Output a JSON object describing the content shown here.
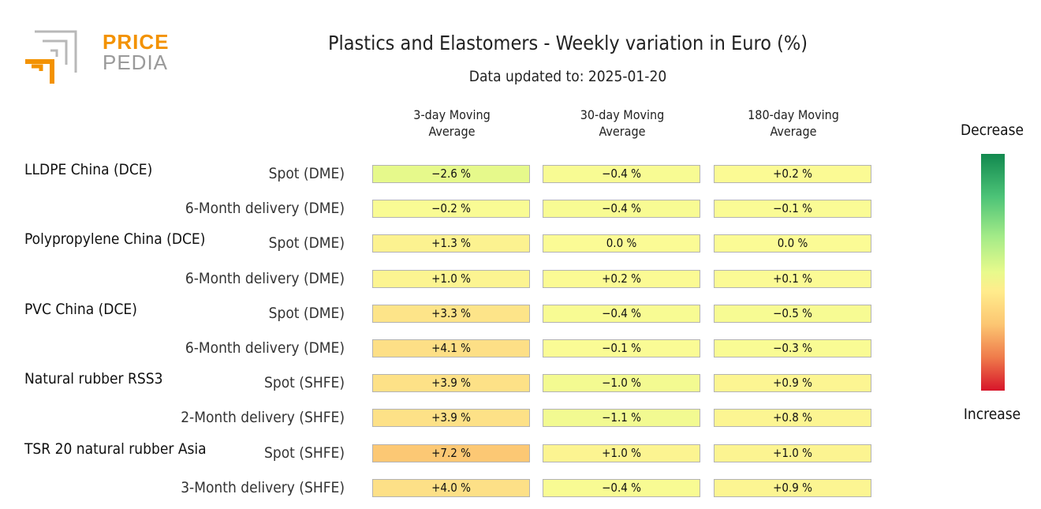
{
  "logo": {
    "line1": "PRICE",
    "line2": "PEDIA"
  },
  "chart_data": {
    "type": "table",
    "title": "Plastics and Elastomers - Weekly variation in Euro (%)",
    "subtitle": "Data updated to: 2025-01-20",
    "columns": [
      "3-day Moving Average",
      "30-day Moving Average",
      "180-day Moving Average"
    ],
    "column_lines": [
      [
        "3-day Moving",
        "Average"
      ],
      [
        "30-day Moving",
        "Average"
      ],
      [
        "180-day Moving",
        "Average"
      ]
    ],
    "groups": [
      {
        "name": "LLDPE China (DCE)",
        "rows": [
          {
            "label": "Spot (DME)",
            "values": [
              -2.6,
              -0.4,
              0.2
            ],
            "texts": [
              "−2.6 %",
              "−0.4 %",
              "+0.2 %"
            ]
          },
          {
            "label": "6-Month delivery (DME)",
            "values": [
              -0.2,
              -0.4,
              -0.1
            ],
            "texts": [
              "−0.2 %",
              "−0.4 %",
              "−0.1 %"
            ]
          }
        ]
      },
      {
        "name": "Polypropylene China (DCE)",
        "rows": [
          {
            "label": "Spot (DME)",
            "values": [
              1.3,
              0.0,
              0.0
            ],
            "texts": [
              "+1.3 %",
              "0.0 %",
              "0.0 %"
            ]
          },
          {
            "label": "6-Month delivery (DME)",
            "values": [
              1.0,
              0.2,
              0.1
            ],
            "texts": [
              "+1.0 %",
              "+0.2 %",
              "+0.1 %"
            ]
          }
        ]
      },
      {
        "name": "PVC China (DCE)",
        "rows": [
          {
            "label": "Spot (DME)",
            "values": [
              3.3,
              -0.4,
              -0.5
            ],
            "texts": [
              "+3.3 %",
              "−0.4 %",
              "−0.5 %"
            ]
          },
          {
            "label": "6-Month delivery (DME)",
            "values": [
              4.1,
              -0.1,
              -0.3
            ],
            "texts": [
              "+4.1 %",
              "−0.1 %",
              "−0.3 %"
            ]
          }
        ]
      },
      {
        "name": "Natural rubber RSS3",
        "rows": [
          {
            "label": "Spot (SHFE)",
            "values": [
              3.9,
              -1.0,
              0.9
            ],
            "texts": [
              "+3.9 %",
              "−1.0 %",
              "+0.9 %"
            ]
          },
          {
            "label": "2-Month delivery (SHFE)",
            "values": [
              3.9,
              -1.1,
              0.8
            ],
            "texts": [
              "+3.9 %",
              "−1.1 %",
              "+0.8 %"
            ]
          }
        ]
      },
      {
        "name": "TSR 20 natural rubber Asia",
        "rows": [
          {
            "label": "Spot (SHFE)",
            "values": [
              7.2,
              1.0,
              1.0
            ],
            "texts": [
              "+7.2 %",
              "+1.0 %",
              "+1.0 %"
            ]
          },
          {
            "label": "3-Month delivery (SHFE)",
            "values": [
              4.0,
              -0.4,
              0.9
            ],
            "texts": [
              "+4.0 %",
              "−0.4 %",
              "+0.9 %"
            ]
          }
        ]
      }
    ],
    "colorbar": {
      "top_label": "Decrease",
      "bottom_label": "Increase",
      "colors": [
        "#12894f",
        "#4cc377",
        "#a4eb88",
        "#e8fa8c",
        "#ffec8c",
        "#fcc672",
        "#ef7b4b",
        "#d7152a"
      ]
    }
  }
}
